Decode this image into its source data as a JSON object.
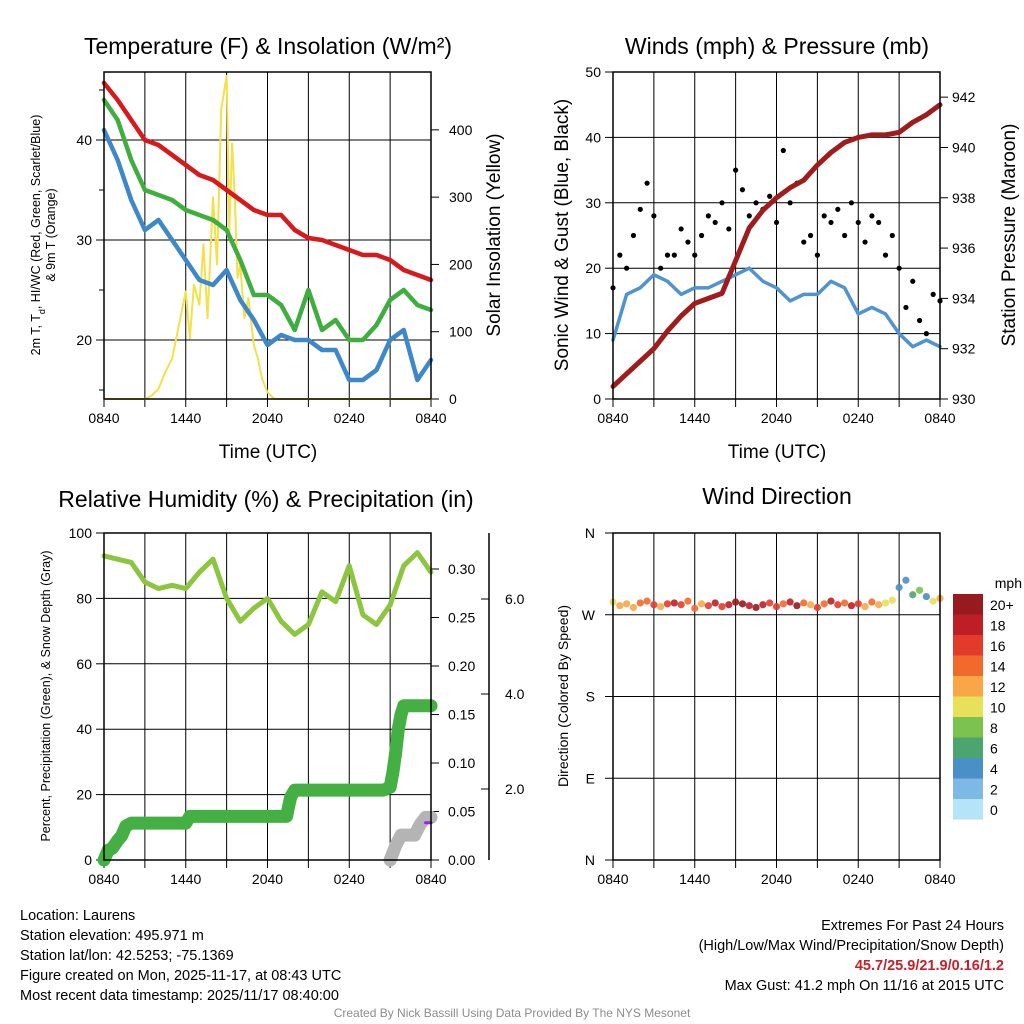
{
  "chart_data": [
    {
      "type": "line",
      "title": "Temperature (F) & Insolation (W/m²)",
      "xlabel": "Time (UTC)",
      "ylabel_parts": [
        "2m T, T",
        "d",
        ", HI/WC (Red, Green, Scarlet/Blue)",
        "& 9m T (Orange)"
      ],
      "ylabel_right": "Solar Insolation (Yellow)",
      "x_ticks": [
        "0840",
        "1440",
        "2040",
        "0240",
        "0840"
      ],
      "ylim": [
        14.1,
        46.8
      ],
      "y_ticks": [
        20,
        30,
        40
      ],
      "ylim_right": [
        0,
        486
      ],
      "y_ticks_right": [
        0,
        100,
        200,
        300,
        400
      ],
      "x_hours": [
        0,
        1,
        2,
        3,
        4,
        5,
        6,
        7,
        8,
        9,
        10,
        11,
        12,
        13,
        14,
        15,
        16,
        17,
        18,
        19,
        20,
        21,
        22,
        23,
        24
      ],
      "series": [
        {
          "name": "2m T",
          "color": "#d7191c",
          "values": [
            45.7,
            44,
            42,
            40,
            39.5,
            38.5,
            37.5,
            36.5,
            36,
            35,
            34,
            33,
            32.5,
            32.5,
            31,
            30.2,
            30,
            29.5,
            29,
            28.5,
            28.5,
            28,
            27,
            26.5,
            26
          ]
        },
        {
          "name": "Td",
          "color": "#3fae3f",
          "values": [
            44,
            42,
            38,
            35,
            34.5,
            34,
            33,
            32.5,
            32,
            31,
            28,
            24.5,
            24.5,
            23.5,
            21,
            25,
            21,
            22,
            20,
            20,
            21.5,
            24,
            25,
            23.5,
            23
          ]
        },
        {
          "name": "HI/WC",
          "color": "#3d88c8",
          "values": [
            41,
            38,
            34,
            31,
            32,
            30,
            28,
            26,
            25.5,
            27,
            24,
            22,
            19.5,
            20.5,
            20,
            20,
            19,
            19,
            16,
            16,
            17,
            20,
            21,
            16,
            18
          ]
        }
      ],
      "solar": {
        "name": "Solar Insolation",
        "color": "#f5e04a",
        "x_hours": [
          0,
          3,
          3.5,
          4,
          4.5,
          5,
          5.5,
          6,
          6.3,
          6.6,
          7,
          7.3,
          7.6,
          8,
          8.3,
          8.6,
          9,
          9.2,
          9.4,
          9.6,
          9.8,
          10,
          10.3,
          10.6,
          11,
          11.3,
          11.6,
          12,
          12.5,
          13,
          24
        ],
        "values": [
          0,
          0,
          5,
          15,
          40,
          60,
          110,
          160,
          90,
          170,
          140,
          230,
          120,
          300,
          200,
          430,
          480,
          250,
          380,
          300,
          180,
          200,
          120,
          150,
          80,
          60,
          30,
          10,
          0,
          0,
          0
        ]
      }
    },
    {
      "type": "scatter",
      "title": "Winds (mph) & Pressure (mb)",
      "xlabel": "Time (UTC)",
      "ylabel": "Sonic Wind & Gust (Blue, Black)",
      "ylabel_right": "Station Pressure (Maroon)",
      "x_ticks": [
        "0840",
        "1440",
        "2040",
        "0240",
        "0840"
      ],
      "ylim": [
        0,
        50
      ],
      "y_ticks": [
        0,
        10,
        20,
        30,
        40,
        50
      ],
      "ylim_right": [
        930,
        943
      ],
      "y_ticks_right": [
        930,
        932,
        934,
        936,
        938,
        940,
        942
      ],
      "x_hours": [
        0,
        1,
        2,
        3,
        4,
        5,
        6,
        7,
        8,
        9,
        10,
        11,
        12,
        13,
        14,
        15,
        16,
        17,
        18,
        19,
        20,
        21,
        22,
        23,
        24
      ],
      "wind": {
        "color": "#4f93d0",
        "values": [
          9,
          16,
          17,
          19,
          18,
          16,
          17,
          17,
          18,
          19,
          20,
          18,
          17,
          15,
          16,
          16,
          18,
          17,
          13,
          14,
          13,
          10,
          8,
          9,
          8
        ]
      },
      "pressure": {
        "color": "#a01c1c",
        "values": [
          930.5,
          931,
          931.5,
          932,
          932.7,
          933.3,
          933.8,
          934,
          934.2,
          935.5,
          936.8,
          937.5,
          938,
          938.4,
          938.7,
          939.3,
          939.8,
          940.2,
          940.4,
          940.5,
          940.5,
          940.6,
          941,
          941.3,
          941.7
        ]
      },
      "gust": {
        "color": "#000000",
        "values": [
          17,
          22,
          20,
          25,
          29,
          33,
          28,
          20,
          22,
          22,
          26,
          24,
          22,
          25,
          28,
          27,
          30,
          26,
          35,
          32,
          28,
          30,
          29,
          31,
          27,
          38,
          30,
          33,
          24,
          25,
          22,
          28,
          27,
          29,
          25,
          30,
          27,
          24,
          28,
          27,
          22,
          25,
          20,
          14,
          18,
          12,
          10,
          16,
          15
        ]
      }
    },
    {
      "type": "line",
      "title": "Relative Humidity (%) & Precipitation (in)",
      "ylabel": "Percent, Precipitation (Green), & Snow Depth (Gray)",
      "x_ticks": [
        "0840",
        "1440",
        "2040",
        "0240",
        "0840"
      ],
      "ylim": [
        0,
        100
      ],
      "y_ticks": [
        0,
        20,
        40,
        60,
        80,
        100
      ],
      "precip_ticks": [
        "0.00",
        "0.05",
        "0.10",
        "0.15",
        "0.20",
        "0.25",
        "0.30"
      ],
      "snow_ticks": [
        "2.0",
        "4.0",
        "6.0"
      ],
      "x_hours": [
        0,
        1,
        2,
        3,
        4,
        5,
        6,
        7,
        8,
        9,
        10,
        11,
        12,
        13,
        14,
        15,
        16,
        17,
        18,
        19,
        20,
        21,
        22,
        23,
        24
      ],
      "rh": {
        "color": "#8cc63f",
        "values": [
          93,
          92,
          91,
          85,
          83,
          84,
          83,
          88,
          92,
          80,
          73,
          77,
          80,
          73,
          69,
          72,
          82,
          79,
          90,
          75,
          72,
          78,
          90,
          94,
          88
        ]
      },
      "precip": {
        "color": "#44b044",
        "x_hours": [
          0,
          0.3,
          0.6,
          1,
          1.3,
          1.6,
          2,
          6,
          6.3,
          6.6,
          13.4,
          13.7,
          14,
          20.5,
          21,
          21.2,
          21.4,
          21.6,
          21.8,
          22,
          24
        ],
        "values": [
          0,
          0.01,
          0.012,
          0.02,
          0.025,
          0.035,
          0.038,
          0.038,
          0.045,
          0.045,
          0.045,
          0.065,
          0.072,
          0.072,
          0.075,
          0.09,
          0.11,
          0.135,
          0.15,
          0.159,
          0.159
        ]
      },
      "snow_depth": {
        "color": "#b4b4b4",
        "x_hours": [
          21,
          21.4,
          21.8,
          22.3,
          22.8,
          23.2,
          23.6,
          24
        ],
        "values": [
          0,
          0.4,
          0.7,
          0.7,
          0.7,
          1.0,
          1.2,
          1.2
        ]
      },
      "snow_extra": {
        "color": "#a020f0",
        "x_hours": [
          23.6,
          24
        ],
        "values": [
          1.05,
          1.05
        ]
      }
    },
    {
      "type": "scatter",
      "title": "Wind Direction",
      "ylabel": "Direction (Colored By Speed)",
      "x_ticks": [
        "0840",
        "1440",
        "2040",
        "0240",
        "0840"
      ],
      "y_ticks": [
        "N",
        "E",
        "S",
        "W",
        "N"
      ],
      "ylim": [
        0,
        360
      ],
      "legend_title": "mph",
      "legend": [
        {
          "label": "20+",
          "color": "#961a1e"
        },
        {
          "label": "18",
          "color": "#be1e26"
        },
        {
          "label": "16",
          "color": "#e33b2b"
        },
        {
          "label": "14",
          "color": "#f2692c"
        },
        {
          "label": "12",
          "color": "#f9a646"
        },
        {
          "label": "10",
          "color": "#e6e05a"
        },
        {
          "label": "8",
          "color": "#7cc24e"
        },
        {
          "label": "6",
          "color": "#4aa66e"
        },
        {
          "label": "4",
          "color": "#4a8fc6"
        },
        {
          "label": "2",
          "color": "#7cb9e4"
        },
        {
          "label": "0",
          "color": "#b5e3f8"
        }
      ],
      "x_hours": [
        0,
        0.5,
        1,
        1.5,
        2,
        2.5,
        3,
        3.5,
        4,
        4.5,
        5,
        5.5,
        6,
        6.5,
        7,
        7.5,
        8,
        8.5,
        9,
        9.5,
        10,
        10.5,
        11,
        11.5,
        12,
        12.5,
        13,
        13.5,
        14,
        14.5,
        15,
        15.5,
        16,
        16.5,
        17,
        17.5,
        18,
        18.5,
        19,
        19.5,
        20,
        20.5,
        21,
        21.5,
        22,
        22.5,
        23,
        23.5,
        24
      ],
      "direction": [
        284,
        280,
        282,
        278,
        283,
        285,
        281,
        279,
        282,
        283,
        281,
        285,
        277,
        282,
        280,
        283,
        279,
        281,
        284,
        282,
        280,
        278,
        281,
        283,
        279,
        282,
        284,
        280,
        283,
        281,
        278,
        282,
        285,
        281,
        283,
        280,
        282,
        279,
        284,
        281,
        283,
        286,
        300,
        308,
        292,
        297,
        290,
        285,
        288
      ],
      "speed": [
        11,
        12,
        13,
        12,
        14,
        15,
        16,
        13,
        17,
        18,
        16,
        14,
        15,
        12,
        17,
        19,
        16,
        18,
        20,
        21,
        18,
        20,
        19,
        17,
        16,
        14,
        18,
        20,
        15,
        12,
        16,
        14,
        18,
        17,
        15,
        19,
        16,
        13,
        14,
        12,
        11,
        10,
        5,
        4,
        6,
        8,
        4,
        10,
        12
      ]
    }
  ],
  "footer": {
    "location": "Location: Laurens",
    "elevation": "Station elevation: 495.971 m",
    "latlon": "Station lat/lon: 42.5253; -75.1369",
    "created": "Figure created on Mon, 2025-11-17, at 08:43 UTC",
    "recent": "Most recent data timestamp: 2025/11/17 08:40:00",
    "extremes_title": "Extremes For Past 24 Hours",
    "extremes_sub": "(High/Low/Max Wind/Precipitation/Snow Depth)",
    "extremes_values": "45.7/25.9/21.9/0.16/1.2",
    "max_gust": "Max Gust: 41.2 mph On 11/16 at 2015 UTC",
    "credit": "Created By Nick Bassill Using Data Provided By The NYS Mesonet"
  }
}
